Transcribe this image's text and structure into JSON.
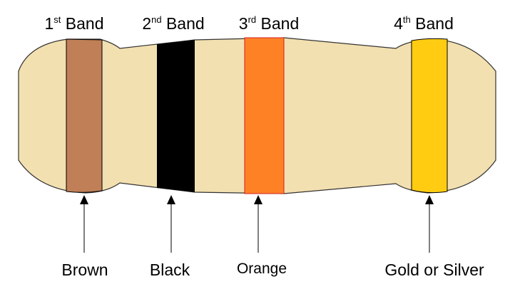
{
  "bands": [
    {
      "num": "1",
      "suffix": "st",
      "word": "Band",
      "color_name": "Brown",
      "color": "#c07f57"
    },
    {
      "num": "2",
      "suffix": "nd",
      "word": "Band",
      "color_name": "Black",
      "color": "#000000"
    },
    {
      "num": "3",
      "suffix": "rd",
      "word": "Band",
      "color_name": "Orange",
      "color": "#ff8126"
    },
    {
      "num": "4",
      "suffix": "th",
      "word": "Band",
      "color_name": "Gold or Silver",
      "color": "#ffcc11"
    }
  ],
  "body_color": "#f3e0b0"
}
